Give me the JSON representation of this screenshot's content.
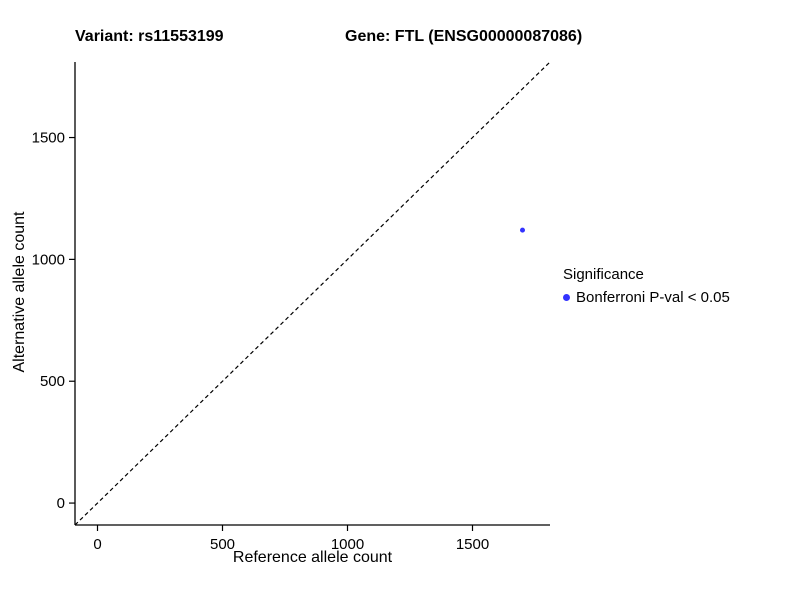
{
  "chart_data": {
    "type": "scatter",
    "title_left": "Variant: rs11553199",
    "title_right": "Gene: FTL (ENSG00000087086)",
    "xlabel": "Reference allele count",
    "ylabel": "Alternative allele count",
    "xlim": [
      -90,
      1810
    ],
    "ylim": [
      -90,
      1810
    ],
    "xticks": [
      0,
      500,
      1000,
      1500
    ],
    "yticks": [
      0,
      500,
      1000,
      1500
    ],
    "grid": false,
    "identity_line": {
      "style": "dashed",
      "from": [
        -90,
        -90
      ],
      "to": [
        1810,
        1810
      ],
      "color": "#000000"
    },
    "points": [
      {
        "x": 1700,
        "y": 1120,
        "color": "#3333ff",
        "radius": 2.5
      }
    ],
    "legend": {
      "position": "right",
      "title": "Significance",
      "items": [
        {
          "label": "Bonferroni P-val < 0.05",
          "color": "#3333ff"
        }
      ]
    },
    "colors": {
      "axis": "#000000",
      "background": "#ffffff",
      "point_blue": "#3333ff"
    }
  }
}
